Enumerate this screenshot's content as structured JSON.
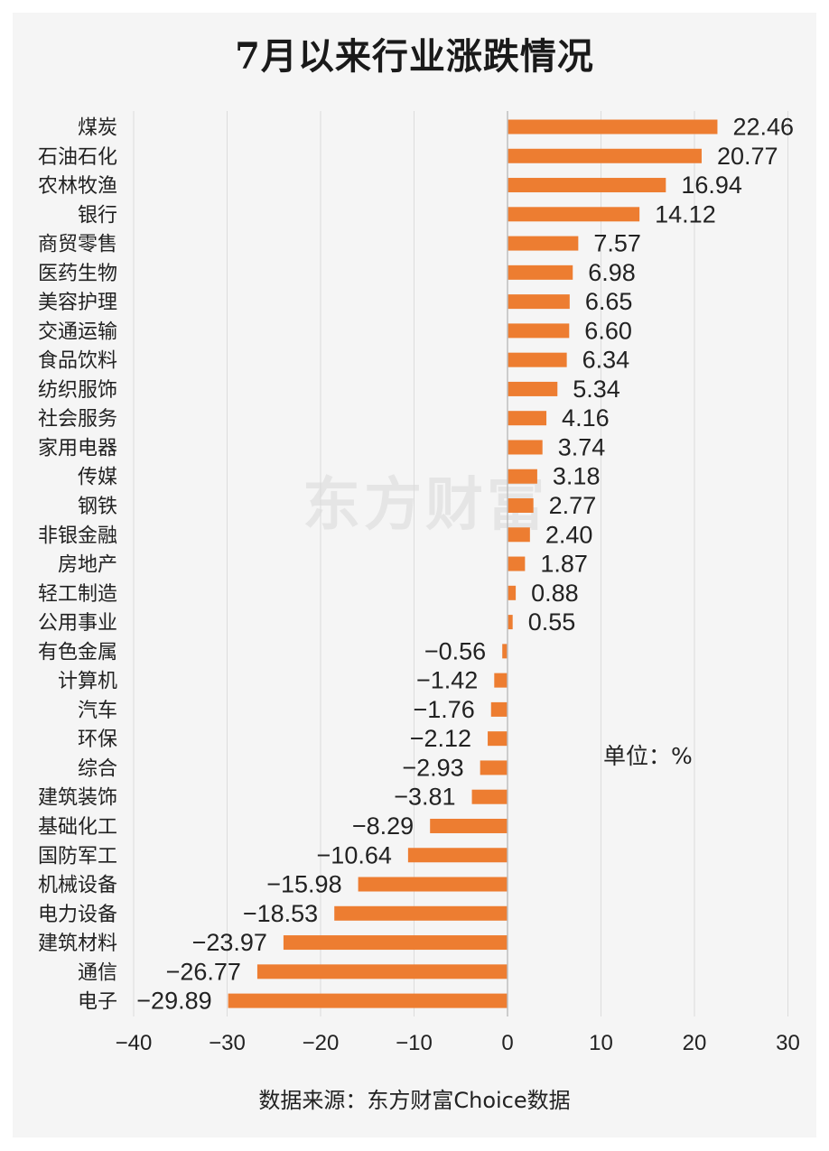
{
  "title": "7月以来行业涨跌情况",
  "unit_note": "单位：%",
  "source_note": "数据来源：东方财富Choice数据",
  "watermark": "东方财富",
  "colors": {
    "bar": "#ed7d31",
    "grid": "#dcdcdc",
    "axis": "#bfbfbf",
    "text": "#222222"
  },
  "chart_data": {
    "type": "bar",
    "orientation": "horizontal",
    "title": "7月以来行业涨跌情况",
    "categories": [
      "煤炭",
      "石油石化",
      "农林牧渔",
      "银行",
      "商贸零售",
      "医药生物",
      "美容护理",
      "交通运输",
      "食品饮料",
      "纺织服饰",
      "社会服务",
      "家用电器",
      "传媒",
      "钢铁",
      "非银金融",
      "房地产",
      "轻工制造",
      "公用事业",
      "有色金属",
      "计算机",
      "汽车",
      "环保",
      "综合",
      "建筑装饰",
      "基础化工",
      "国防军工",
      "机械设备",
      "电力设备",
      "建筑材料",
      "通信",
      "电子"
    ],
    "values": [
      22.46,
      20.77,
      16.94,
      14.12,
      7.57,
      6.98,
      6.65,
      6.6,
      6.34,
      5.34,
      4.16,
      3.74,
      3.18,
      2.77,
      2.4,
      1.87,
      0.88,
      0.55,
      -0.56,
      -1.42,
      -1.76,
      -2.12,
      -2.93,
      -3.81,
      -8.29,
      -10.64,
      -15.98,
      -18.53,
      -23.97,
      -26.77,
      -29.89
    ],
    "value_labels": [
      "22.46",
      "20.77",
      "16.94",
      "14.12",
      "7.57",
      "6.98",
      "6.65",
      "6.60",
      "6.34",
      "5.34",
      "4.16",
      "3.74",
      "3.18",
      "2.77",
      "2.40",
      "1.87",
      "0.88",
      "0.55",
      "−0.56",
      "−1.42",
      "−1.76",
      "−2.12",
      "−2.93",
      "−3.81",
      "−8.29",
      "−10.64",
      "−15.98",
      "−18.53",
      "−23.97",
      "−26.77",
      "−29.89"
    ],
    "xlim": [
      -40,
      30
    ],
    "xticks": [
      -40,
      -30,
      -20,
      -10,
      0,
      10,
      20,
      30
    ],
    "xtick_labels": [
      "−40",
      "−30",
      "−20",
      "−10",
      "0",
      "10",
      "20",
      "30"
    ],
    "grid": "vertical",
    "legend": "none"
  }
}
